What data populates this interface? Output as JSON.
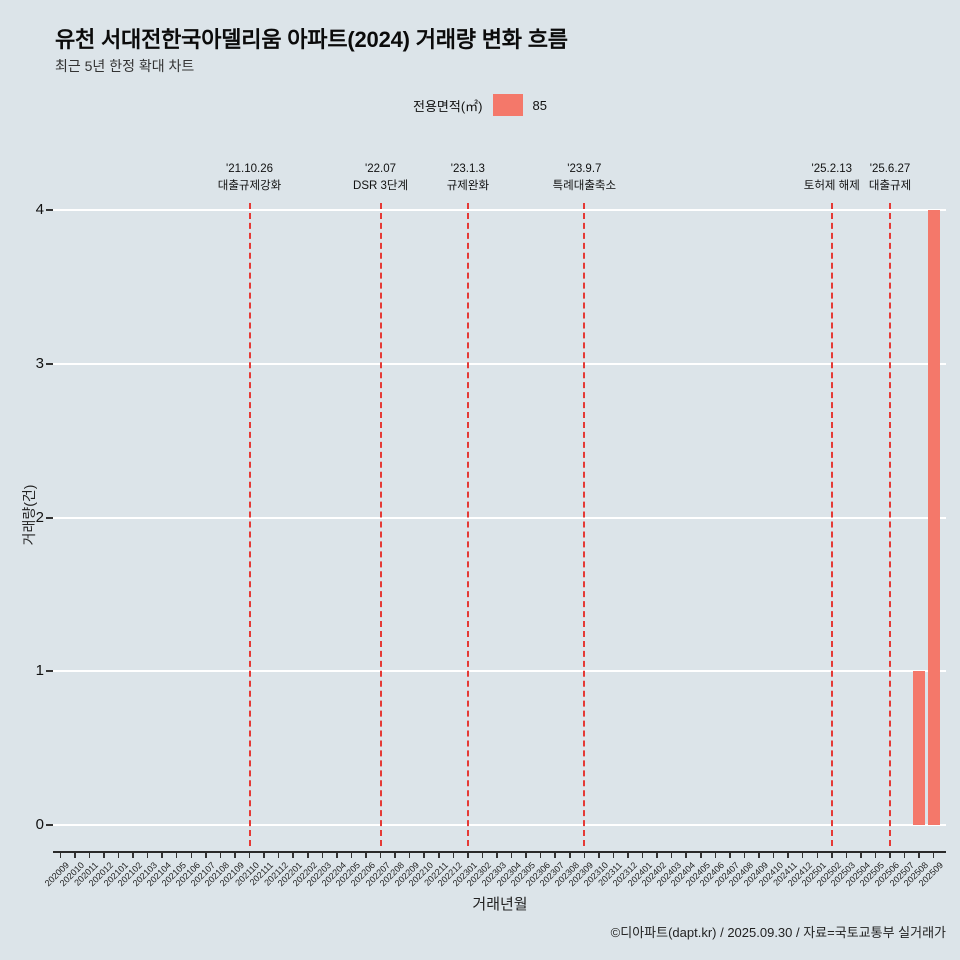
{
  "title": "유천 서대전한국아델리움 아파트(2024) 거래량 변화 흐름",
  "subtitle": "최근 5년 한정 확대 차트",
  "legend": {
    "label": "전용면적(㎡)",
    "value": "85",
    "color": "#f4786a"
  },
  "footer": "©디아파트(dapt.kr) / 2025.09.30 / 자료=국토교통부 실거래가",
  "chart_data": {
    "type": "bar",
    "title": "유천 서대전한국아델리움 아파트(2024) 거래량 변화 흐름",
    "subtitle": "최근 5년 한정 확대 차트",
    "xlabel": "거래년월",
    "ylabel": "거래량(건)",
    "ylim": [
      0,
      4
    ],
    "yticks": [
      0,
      1,
      2,
      3,
      4
    ],
    "grid": "horizontal-white",
    "legend_position": "top-center",
    "bar_color": "#f4786a",
    "annotation_color": "#e53935",
    "categories": [
      "202009",
      "202010",
      "202011",
      "202012",
      "202101",
      "202102",
      "202103",
      "202104",
      "202105",
      "202106",
      "202107",
      "202108",
      "202109",
      "202110",
      "202111",
      "202112",
      "202201",
      "202202",
      "202203",
      "202204",
      "202205",
      "202206",
      "202207",
      "202208",
      "202209",
      "202210",
      "202211",
      "202212",
      "202301",
      "202302",
      "202303",
      "202304",
      "202305",
      "202306",
      "202307",
      "202308",
      "202309",
      "202310",
      "202311",
      "202312",
      "202401",
      "202402",
      "202403",
      "202404",
      "202405",
      "202406",
      "202407",
      "202408",
      "202409",
      "202410",
      "202411",
      "202412",
      "202501",
      "202502",
      "202503",
      "202504",
      "202505",
      "202506",
      "202507",
      "202508",
      "202509"
    ],
    "values": [
      0,
      0,
      0,
      0,
      0,
      0,
      0,
      0,
      0,
      0,
      0,
      0,
      0,
      0,
      0,
      0,
      0,
      0,
      0,
      0,
      0,
      0,
      0,
      0,
      0,
      0,
      0,
      0,
      0,
      0,
      0,
      0,
      0,
      0,
      0,
      0,
      0,
      0,
      0,
      0,
      0,
      0,
      0,
      0,
      0,
      0,
      0,
      0,
      0,
      0,
      0,
      0,
      0,
      0,
      0,
      0,
      0,
      0,
      0,
      1,
      4
    ],
    "annotations": [
      {
        "month": "202110",
        "date": "'21.10.26",
        "label": "대출규제강화"
      },
      {
        "month": "202207",
        "date": "'22.07",
        "label": "DSR 3단계"
      },
      {
        "month": "202301",
        "date": "'23.1.3",
        "label": "규제완화"
      },
      {
        "month": "202309",
        "date": "'23.9.7",
        "label": "특례대출축소"
      },
      {
        "month": "202502",
        "date": "'25.2.13",
        "label": "토허제 해제"
      },
      {
        "month": "202506",
        "date": "'25.6.27",
        "label": "대출규제"
      }
    ]
  }
}
